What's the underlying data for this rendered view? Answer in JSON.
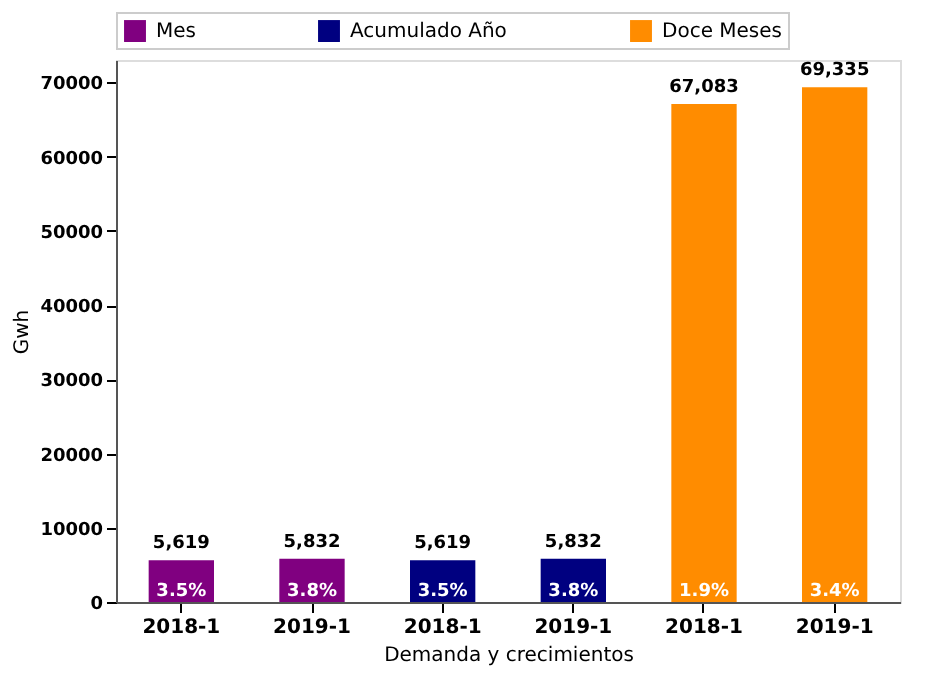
{
  "chart_data": {
    "type": "bar",
    "xlabel": "Demanda y crecimientos",
    "ylabel": "Gwh",
    "categories": [
      "2018-1",
      "2019-1",
      "2018-1",
      "2019-1",
      "2018-1",
      "2019-1"
    ],
    "series": [
      {
        "name": "Mes",
        "color": "#800080",
        "values": [
          5619,
          5832,
          null,
          null,
          null,
          null
        ],
        "value_labels": [
          "5,619",
          "5,832",
          null,
          null,
          null,
          null
        ]
      },
      {
        "name": "Acumulado Año",
        "color": "#000080",
        "values": [
          null,
          null,
          5619,
          5832,
          null,
          null
        ],
        "value_labels": [
          null,
          null,
          "5,619",
          "5,832",
          null,
          null
        ]
      },
      {
        "name": "Doce Meses",
        "color": "#ff8c00",
        "values": [
          null,
          null,
          null,
          null,
          67083,
          69335
        ],
        "value_labels": [
          null,
          null,
          null,
          null,
          "67,083",
          "69,335"
        ]
      }
    ],
    "annotations": [
      "3.5%",
      "3.8%",
      "3.5%",
      "3.8%",
      "1.9%",
      "3.4%"
    ],
    "ylim": [
      0,
      73000
    ],
    "yticks": [
      0,
      10000,
      20000,
      30000,
      40000,
      50000,
      60000,
      70000
    ],
    "legend": "top",
    "grid": false
  }
}
